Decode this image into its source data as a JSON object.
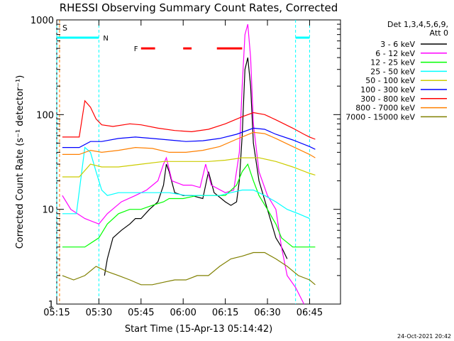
{
  "chart_data": {
    "type": "line",
    "title": "RHESSI Observing Summary Count Rates, Corrected",
    "xlabel": "Start Time (15-Apr-13 05:14:42)",
    "ylabel": "Corrected Count Rate (s⁻¹ detector⁻¹)",
    "y_scale": "log",
    "ylim": [
      1,
      1000
    ],
    "xlim_minutes": [
      0,
      101
    ],
    "x_tick_labels": [
      "05:15",
      "05:30",
      "05:45",
      "06:00",
      "06:15",
      "06:30",
      "06:45"
    ],
    "x_tick_minutes": [
      0,
      15,
      30,
      45,
      60,
      75,
      90
    ],
    "y_tick_labels": [
      "1",
      "10",
      "100",
      "1000"
    ],
    "y_tick_values": [
      1,
      10,
      100,
      1000
    ],
    "legend_header": [
      "Det 1,3,4,5,6,9,",
      "Att 0"
    ],
    "legend_position": "right",
    "footer_date": "24-Oct-2021 20:42",
    "series": [
      {
        "name": "3 - 6 keV",
        "color": "#000000",
        "points": [
          [
            17,
            2
          ],
          [
            18,
            3
          ],
          [
            20,
            5
          ],
          [
            23,
            6
          ],
          [
            26,
            7
          ],
          [
            28,
            8
          ],
          [
            30,
            8
          ],
          [
            33,
            10
          ],
          [
            36,
            12
          ],
          [
            38,
            18
          ],
          [
            39,
            30
          ],
          [
            40,
            25
          ],
          [
            42,
            15
          ],
          [
            45,
            14
          ],
          [
            48,
            14
          ],
          [
            52,
            13
          ],
          [
            54,
            25
          ],
          [
            56,
            15
          ],
          [
            60,
            12
          ],
          [
            62,
            11
          ],
          [
            64,
            12
          ],
          [
            65,
            20
          ],
          [
            66,
            60
          ],
          [
            67,
            300
          ],
          [
            68,
            400
          ],
          [
            69,
            200
          ],
          [
            70,
            50
          ],
          [
            72,
            20
          ],
          [
            75,
            10
          ],
          [
            78,
            5
          ],
          [
            80,
            4
          ],
          [
            82,
            3
          ]
        ]
      },
      {
        "name": "6 - 12 keV",
        "color": "#ff00ff",
        "points": [
          [
            2,
            14
          ],
          [
            5,
            10
          ],
          [
            10,
            8
          ],
          [
            15,
            7
          ],
          [
            18,
            9
          ],
          [
            23,
            12
          ],
          [
            28,
            14
          ],
          [
            32,
            16
          ],
          [
            36,
            20
          ],
          [
            38,
            30
          ],
          [
            39,
            35
          ],
          [
            41,
            20
          ],
          [
            45,
            18
          ],
          [
            48,
            18
          ],
          [
            51,
            17
          ],
          [
            53,
            30
          ],
          [
            55,
            18
          ],
          [
            60,
            15
          ],
          [
            63,
            16
          ],
          [
            65,
            40
          ],
          [
            66,
            200
          ],
          [
            67,
            700
          ],
          [
            68,
            900
          ],
          [
            69,
            400
          ],
          [
            70,
            80
          ],
          [
            72,
            25
          ],
          [
            75,
            14
          ],
          [
            78,
            10
          ],
          [
            80,
            4
          ],
          [
            82,
            2
          ],
          [
            85,
            1.5
          ],
          [
            88,
            1
          ]
        ]
      },
      {
        "name": "12 - 25 keV",
        "color": "#00ff00",
        "points": [
          [
            2,
            4
          ],
          [
            10,
            4
          ],
          [
            15,
            5
          ],
          [
            18,
            7
          ],
          [
            22,
            9
          ],
          [
            26,
            10
          ],
          [
            30,
            10
          ],
          [
            34,
            11
          ],
          [
            38,
            12
          ],
          [
            40,
            13
          ],
          [
            45,
            13
          ],
          [
            50,
            14
          ],
          [
            55,
            14
          ],
          [
            60,
            14
          ],
          [
            64,
            18
          ],
          [
            66,
            25
          ],
          [
            68,
            30
          ],
          [
            70,
            20
          ],
          [
            72,
            14
          ],
          [
            75,
            10
          ],
          [
            78,
            7
          ],
          [
            80,
            5
          ],
          [
            84,
            4
          ],
          [
            88,
            4
          ],
          [
            92,
            4
          ]
        ]
      },
      {
        "name": "25 - 50 keV",
        "color": "#00ffff",
        "points": [
          [
            2,
            9
          ],
          [
            7,
            9
          ],
          [
            10,
            45
          ],
          [
            12,
            40
          ],
          [
            14,
            25
          ],
          [
            16,
            16
          ],
          [
            18,
            14
          ],
          [
            22,
            15
          ],
          [
            28,
            15
          ],
          [
            34,
            15
          ],
          [
            40,
            15
          ],
          [
            46,
            14
          ],
          [
            52,
            14
          ],
          [
            58,
            14
          ],
          [
            62,
            15
          ],
          [
            66,
            16
          ],
          [
            70,
            16
          ],
          [
            74,
            14
          ],
          [
            78,
            12
          ],
          [
            82,
            10
          ],
          [
            86,
            9
          ],
          [
            90,
            8
          ]
        ]
      },
      {
        "name": "50 - 100 keV",
        "color": "#cccc00",
        "points": [
          [
            2,
            22
          ],
          [
            8,
            22
          ],
          [
            12,
            30
          ],
          [
            16,
            28
          ],
          [
            22,
            28
          ],
          [
            30,
            30
          ],
          [
            38,
            32
          ],
          [
            46,
            32
          ],
          [
            54,
            32
          ],
          [
            60,
            33
          ],
          [
            66,
            35
          ],
          [
            72,
            35
          ],
          [
            78,
            32
          ],
          [
            84,
            28
          ],
          [
            90,
            24
          ],
          [
            92,
            23
          ]
        ]
      },
      {
        "name": "100 - 300 keV",
        "color": "#0000ff",
        "points": [
          [
            2,
            45
          ],
          [
            8,
            45
          ],
          [
            12,
            52
          ],
          [
            16,
            52
          ],
          [
            22,
            56
          ],
          [
            28,
            58
          ],
          [
            34,
            56
          ],
          [
            40,
            54
          ],
          [
            46,
            52
          ],
          [
            52,
            53
          ],
          [
            58,
            56
          ],
          [
            64,
            62
          ],
          [
            70,
            72
          ],
          [
            74,
            70
          ],
          [
            78,
            62
          ],
          [
            84,
            54
          ],
          [
            90,
            46
          ],
          [
            92,
            43
          ]
        ]
      },
      {
        "name": "300 - 800 keV",
        "color": "#ff0000",
        "points": [
          [
            2,
            58
          ],
          [
            8,
            58
          ],
          [
            10,
            140
          ],
          [
            12,
            120
          ],
          [
            14,
            90
          ],
          [
            16,
            78
          ],
          [
            20,
            75
          ],
          [
            26,
            80
          ],
          [
            30,
            78
          ],
          [
            36,
            72
          ],
          [
            42,
            68
          ],
          [
            48,
            66
          ],
          [
            54,
            70
          ],
          [
            60,
            80
          ],
          [
            66,
            95
          ],
          [
            70,
            105
          ],
          [
            74,
            100
          ],
          [
            78,
            88
          ],
          [
            84,
            72
          ],
          [
            88,
            62
          ],
          [
            90,
            58
          ],
          [
            92,
            55
          ]
        ]
      },
      {
        "name": "800 - 7000 keV",
        "color": "#ff8000",
        "points": [
          [
            2,
            38
          ],
          [
            8,
            38
          ],
          [
            12,
            42
          ],
          [
            16,
            40
          ],
          [
            22,
            42
          ],
          [
            28,
            45
          ],
          [
            34,
            44
          ],
          [
            40,
            40
          ],
          [
            46,
            40
          ],
          [
            52,
            42
          ],
          [
            58,
            46
          ],
          [
            64,
            55
          ],
          [
            70,
            65
          ],
          [
            74,
            63
          ],
          [
            78,
            56
          ],
          [
            84,
            46
          ],
          [
            90,
            38
          ],
          [
            92,
            35
          ]
        ]
      },
      {
        "name": "7000 - 15000 keV",
        "color": "#808000",
        "points": [
          [
            2,
            2
          ],
          [
            6,
            1.8
          ],
          [
            10,
            2
          ],
          [
            14,
            2.5
          ],
          [
            18,
            2.2
          ],
          [
            22,
            2
          ],
          [
            26,
            1.8
          ],
          [
            30,
            1.6
          ],
          [
            34,
            1.6
          ],
          [
            38,
            1.7
          ],
          [
            42,
            1.8
          ],
          [
            46,
            1.8
          ],
          [
            50,
            2
          ],
          [
            54,
            2
          ],
          [
            58,
            2.5
          ],
          [
            62,
            3
          ],
          [
            66,
            3.2
          ],
          [
            70,
            3.5
          ],
          [
            74,
            3.5
          ],
          [
            78,
            3
          ],
          [
            82,
            2.5
          ],
          [
            86,
            2
          ],
          [
            90,
            1.8
          ],
          [
            92,
            1.6
          ]
        ]
      }
    ],
    "flag_labels": {
      "s": "S",
      "n": "N",
      "f": "F"
    },
    "annotations": {
      "saa_until_minutes": 1,
      "night_intervals_minutes": [
        [
          0,
          15
        ],
        [
          85,
          90
        ]
      ],
      "night_level": 650,
      "flare_segments_minutes": [
        [
          30,
          35
        ],
        [
          45,
          48
        ],
        [
          57,
          66
        ]
      ],
      "flare_level": 500
    }
  }
}
